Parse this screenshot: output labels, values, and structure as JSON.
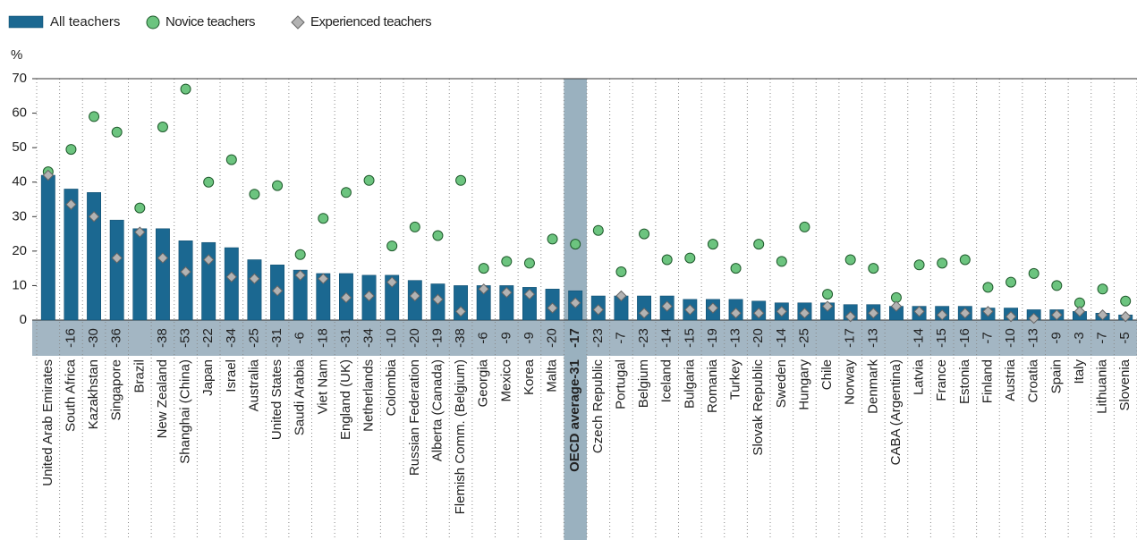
{
  "chart_data": {
    "type": "bar",
    "y_label": "%",
    "categories": [
      "United Arab Emirates",
      "South Africa",
      "Kazakhstan",
      "Singapore",
      "Brazil",
      "New Zealand",
      "Shanghai (China)",
      "Japan",
      "Israel",
      "Australia",
      "United States",
      "Saudi Arabia",
      "Viet Nam",
      "England (UK)",
      "Netherlands",
      "Colombia",
      "Russian Federation",
      "Alberta (Canada)",
      "Flemish Comm. (Belgium)",
      "Georgia",
      "Mexico",
      "Korea",
      "Malta",
      "OECD average-31",
      "Czech Republic",
      "Portugal",
      "Belgium",
      "Iceland",
      "Bulgaria",
      "Romania",
      "Turkey",
      "Slovak Republic",
      "Sweden",
      "Hungary",
      "Chile",
      "Norway",
      "Denmark",
      "CABA (Argentina)",
      "Latvia",
      "France",
      "Estonia",
      "Finland",
      "Austria",
      "Croatia",
      "Spain",
      "Italy",
      "Lithuania",
      "Slovenia"
    ],
    "highlight": "OECD average-31",
    "series": [
      {
        "name": "All teachers",
        "color": "#1b6891",
        "marker": "bar",
        "values": [
          42,
          38,
          37,
          29,
          26.5,
          26.5,
          23,
          22.5,
          21,
          17.5,
          16,
          14.5,
          13.5,
          13.5,
          13,
          13,
          11.5,
          10.5,
          10,
          10,
          10,
          9.5,
          9,
          8.5,
          7,
          7,
          7,
          7,
          6,
          6,
          6,
          5.5,
          5,
          5,
          5,
          4.5,
          4.5,
          4,
          4,
          4,
          4,
          3.5,
          3.5,
          3,
          3,
          2.5,
          2,
          1.5
        ]
      },
      {
        "name": "Novice teachers",
        "color": "#6cc47f",
        "marker": "circle",
        "values": [
          43,
          49.5,
          59,
          54.5,
          32.5,
          56,
          67,
          40,
          46.5,
          36.5,
          39,
          19,
          29.5,
          37,
          40.5,
          21.5,
          27,
          24.5,
          40.5,
          15,
          17,
          16.5,
          23.5,
          22,
          26,
          14,
          25,
          17.5,
          18,
          22,
          15,
          22,
          17,
          27,
          7.5,
          17.5,
          15,
          6.5,
          16,
          16.5,
          17.5,
          9.5,
          11,
          13.5,
          10,
          5,
          9,
          5.5
        ]
      },
      {
        "name": "Experienced teachers",
        "color": "#b3b3b3",
        "marker": "diamond",
        "values": [
          42,
          33.5,
          30,
          18,
          25.5,
          18,
          14,
          17.5,
          12.5,
          12,
          8.5,
          13,
          12,
          6.5,
          7,
          11,
          7,
          6,
          2.5,
          9,
          8,
          7.5,
          3.5,
          5,
          3,
          7,
          2,
          4,
          3,
          3.5,
          2,
          2,
          2.5,
          2,
          4,
          1,
          2,
          4,
          2.5,
          1.5,
          2,
          2.5,
          1,
          0.5,
          1.5,
          2.5,
          1.5,
          1
        ]
      }
    ],
    "differences": [
      null,
      -16,
      -30,
      -36,
      null,
      -38,
      -53,
      -22,
      -34,
      -25,
      -31,
      -6,
      -18,
      -31,
      -34,
      -10,
      -20,
      -19,
      -38,
      -6,
      -9,
      -9,
      -20,
      -17,
      -23,
      -7,
      -23,
      -14,
      -15,
      -19,
      -13,
      -20,
      -14,
      -25,
      null,
      -17,
      -13,
      null,
      -14,
      -15,
      -16,
      -7,
      -10,
      -13,
      -9,
      -3,
      -7,
      -5
    ],
    "ylim": [
      0,
      70
    ],
    "yticks": [
      0,
      10,
      20,
      30,
      40,
      50,
      60,
      70
    ],
    "grid": false
  }
}
